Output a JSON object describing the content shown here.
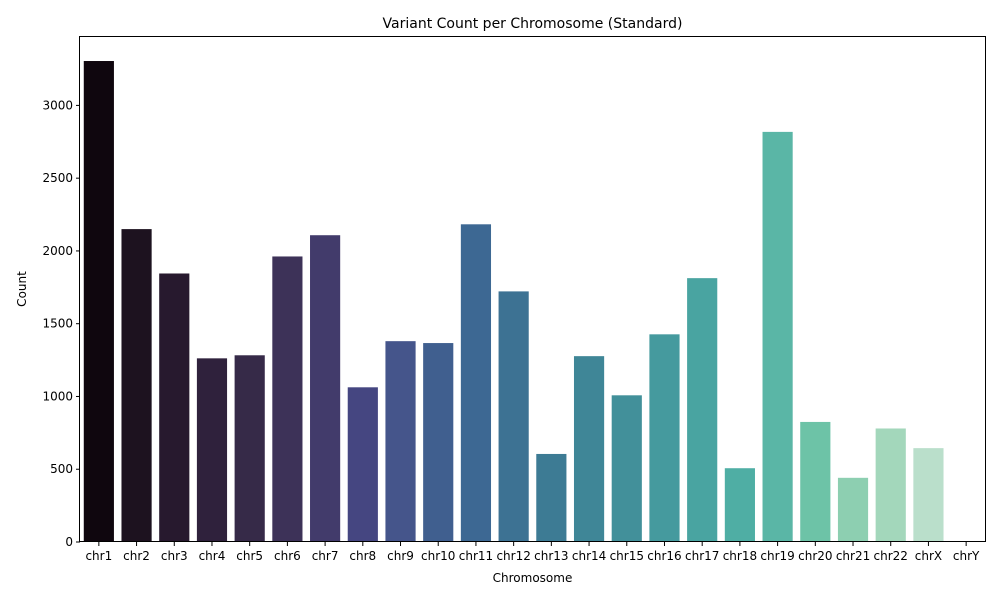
{
  "chart_data": {
    "type": "bar",
    "title": "Variant Count per Chromosome (Standard)",
    "xlabel": "Chromosome",
    "ylabel": "Count",
    "categories": [
      "chr1",
      "chr2",
      "chr3",
      "chr4",
      "chr5",
      "chr6",
      "chr7",
      "chr8",
      "chr9",
      "chr10",
      "chr11",
      "chr12",
      "chr13",
      "chr14",
      "chr15",
      "chr16",
      "chr17",
      "chr18",
      "chr19",
      "chr20",
      "chr21",
      "chr22",
      "chrX",
      "chrY"
    ],
    "values": [
      3305,
      2150,
      1845,
      1262,
      1283,
      1962,
      2108,
      1063,
      1380,
      1367,
      2183,
      1722,
      605,
      1277,
      1008,
      1427,
      1813,
      507,
      2818,
      825,
      441,
      780,
      645,
      0
    ],
    "colors": [
      "#0f060e",
      "#1d121f",
      "#27192e",
      "#2f213c",
      "#362a48",
      "#3d3258",
      "#423b6b",
      "#454681",
      "#45558b",
      "#405f8f",
      "#3d6893",
      "#3d7293",
      "#3d7b94",
      "#3f8697",
      "#42909a",
      "#459a9e",
      "#49a4a1",
      "#4faea4",
      "#5ab6a6",
      "#6dc3a7",
      "#8dcfb1",
      "#a3d7bb",
      "#badfcb",
      "#d0e9dc"
    ],
    "ylim": [
      0,
      3470
    ],
    "yticks": [
      0,
      500,
      1000,
      1500,
      2000,
      2500,
      3000
    ],
    "grid": false,
    "legend": "none"
  }
}
